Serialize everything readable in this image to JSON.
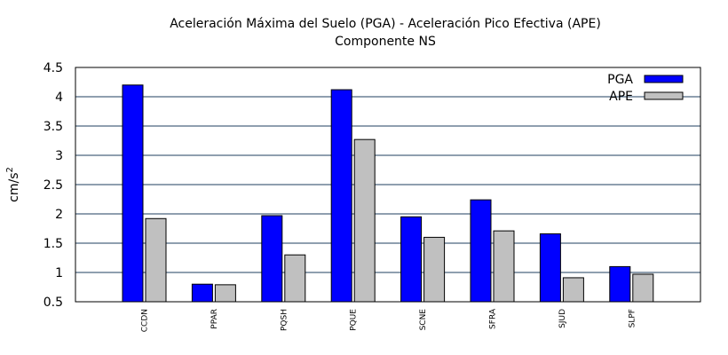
{
  "chart_data": {
    "type": "bar",
    "title": "Aceleración Máxima del Suelo (PGA) -  Aceleración Pico Efectiva (APE)",
    "subtitle": "Componente NS",
    "ylabel": "cm/s",
    "ylabel_superscript": "2",
    "ylim": [
      0.5,
      4.5
    ],
    "yticks": [
      "0.5",
      "1",
      "1.5",
      "2",
      "2.5",
      "3",
      "3.5",
      "4",
      "4.5"
    ],
    "grid": true,
    "legend_position": "top-right",
    "categories": [
      "CCDN",
      "PPAR",
      "PQSH",
      "PQUE",
      "SCNE",
      "SFRA",
      "SJUD",
      "SLPF"
    ],
    "series": [
      {
        "name": "PGA",
        "color": "#0000ff",
        "values": [
          4.2,
          0.8,
          1.97,
          4.12,
          1.95,
          2.24,
          1.66,
          1.1
        ]
      },
      {
        "name": "APE",
        "color": "#c0c0c0",
        "values": [
          1.92,
          0.79,
          1.3,
          3.27,
          1.6,
          1.71,
          0.91,
          0.97
        ]
      }
    ]
  }
}
